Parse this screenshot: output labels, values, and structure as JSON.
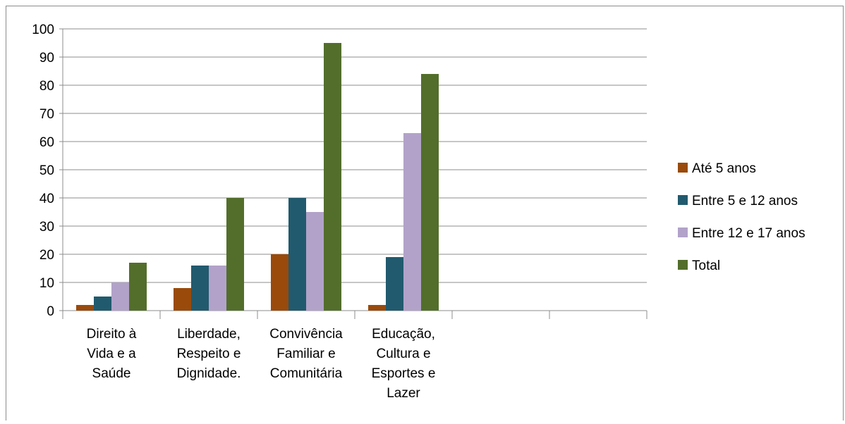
{
  "chart_data": {
    "type": "bar",
    "categories": [
      [
        "Direito à",
        "Vida e a",
        "Saúde"
      ],
      [
        "Liberdade,",
        "Respeito e",
        "Dignidade."
      ],
      [
        "Convivência",
        "Familiar e",
        "Comunitária"
      ],
      [
        "Educação,",
        "Cultura e",
        "Esportes e",
        "Lazer"
      ],
      [],
      []
    ],
    "series": [
      {
        "name": "Até 5 anos",
        "color": "#9a4a0b",
        "values": [
          2,
          8,
          20,
          2,
          null,
          null
        ]
      },
      {
        "name": "Entre 5 e 12 anos",
        "color": "#215a6e",
        "values": [
          5,
          16,
          40,
          19,
          null,
          null
        ]
      },
      {
        "name": "Entre 12 e 17 anos",
        "color": "#b2a2c9",
        "values": [
          10,
          16,
          35,
          63,
          null,
          null
        ]
      },
      {
        "name": "Total",
        "color": "#536e2b",
        "values": [
          17,
          40,
          95,
          84,
          null,
          null
        ]
      }
    ],
    "ylim": [
      0,
      100
    ],
    "yticks": [
      0,
      10,
      20,
      30,
      40,
      50,
      60,
      70,
      80,
      90,
      100
    ],
    "grid": true,
    "legend_position": "right",
    "title": "",
    "xlabel": "",
    "ylabel": ""
  }
}
